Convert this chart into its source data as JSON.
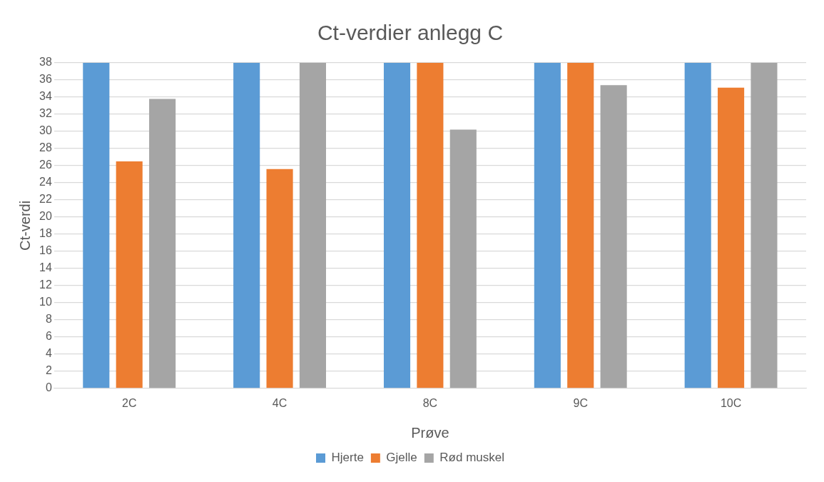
{
  "chart_data": {
    "type": "bar",
    "title": "Ct-verdier anlegg C",
    "xlabel": "Prøve",
    "ylabel": "Ct-verdi",
    "categories": [
      "2C",
      "4C",
      "8C",
      "9C",
      "10C"
    ],
    "series": [
      {
        "name": "Hjerte",
        "color": "#5b9bd5",
        "values": [
          38,
          38,
          38,
          38,
          38
        ]
      },
      {
        "name": "Gjelle",
        "color": "#ed7d31",
        "values": [
          26.5,
          25.6,
          38,
          38,
          35.1
        ]
      },
      {
        "name": "Rød muskel",
        "color": "#a5a5a5",
        "values": [
          33.8,
          38,
          30.2,
          35.4,
          38
        ]
      }
    ],
    "ylim": [
      0,
      38
    ],
    "yticks": [
      0,
      2,
      4,
      6,
      8,
      10,
      12,
      14,
      16,
      18,
      20,
      22,
      24,
      26,
      28,
      30,
      32,
      34,
      36,
      38
    ],
    "grid": "y",
    "legend": "bottom"
  }
}
